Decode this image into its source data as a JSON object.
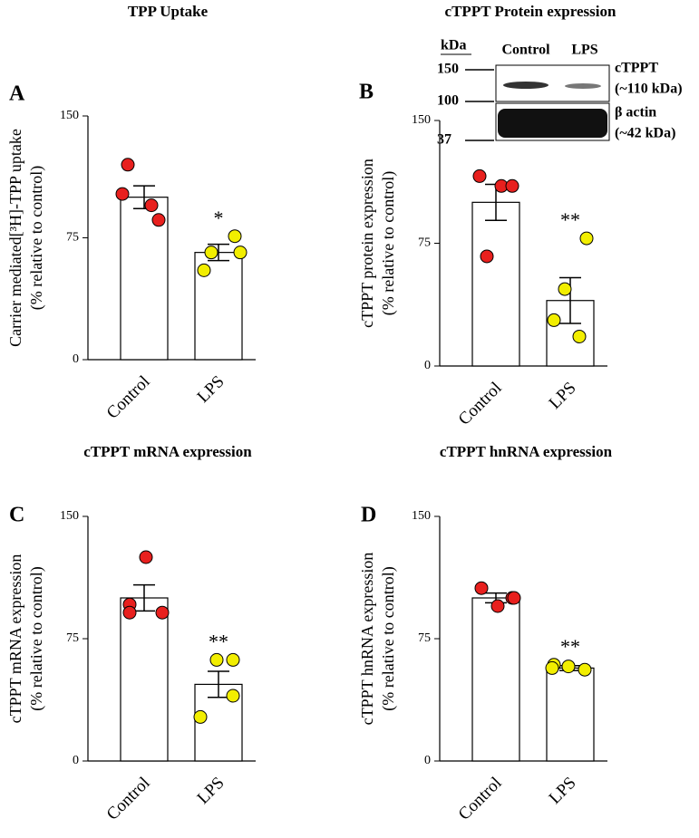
{
  "chart_data": [
    {
      "type": "bar",
      "panel": "A",
      "title": "TPP Uptake",
      "ylabel": [
        "Carrier mediated[³H]-TPP uptake",
        "(% relative to control)"
      ],
      "categories": [
        "Control",
        "LPS"
      ],
      "values": [
        100,
        66
      ],
      "errors": [
        7,
        5
      ],
      "points": [
        [
          120,
          102,
          95,
          86
        ],
        [
          76,
          66,
          66,
          55
        ]
      ],
      "colors": [
        "#e8201e",
        "#f2ee00"
      ],
      "annotations": [
        null,
        "*"
      ],
      "ylim": [
        0,
        150
      ],
      "yticks": [
        0,
        75,
        150
      ]
    },
    {
      "type": "bar",
      "panel": "B",
      "title": "cTPPT Protein expression",
      "ylabel": [
        "cTPPT protein expression",
        "(% relative to control)"
      ],
      "categories": [
        "Control",
        "LPS"
      ],
      "values": [
        100,
        40
      ],
      "errors": [
        11,
        14
      ],
      "points": [
        [
          116,
          110,
          110,
          67
        ],
        [
          78,
          47,
          28,
          18
        ]
      ],
      "colors": [
        "#e8201e",
        "#f2ee00"
      ],
      "annotations": [
        null,
        "**"
      ],
      "ylim": [
        0,
        150
      ],
      "yticks": [
        0,
        75,
        150
      ],
      "blot": {
        "unit": "kDa",
        "markers": [
          150,
          100,
          37
        ],
        "lanes": [
          "Control",
          "LPS"
        ],
        "bands": [
          [
            "cTPPT",
            "(~110 kDa)"
          ],
          [
            "β actin",
            "(~42 kDa)"
          ]
        ]
      }
    },
    {
      "type": "bar",
      "panel": "C",
      "title": "cTPPT mRNA expression",
      "ylabel": [
        "cTPPT mRNA expression",
        "(% relative to control)"
      ],
      "categories": [
        "Control",
        "LPS"
      ],
      "values": [
        100,
        47
      ],
      "errors": [
        8,
        8
      ],
      "points": [
        [
          125,
          96,
          91,
          91
        ],
        [
          62,
          62,
          40,
          27
        ]
      ],
      "colors": [
        "#e8201e",
        "#f2ee00"
      ],
      "annotations": [
        null,
        "**"
      ],
      "ylim": [
        0,
        150
      ],
      "yticks": [
        0,
        75,
        150
      ]
    },
    {
      "type": "bar",
      "panel": "D",
      "title": "cTPPT hnRNA expression",
      "ylabel": [
        "cTPPT hnRNA expression",
        "(% relative to control)"
      ],
      "categories": [
        "Control",
        "LPS"
      ],
      "values": [
        100,
        57
      ],
      "errors": [
        3,
        1.5
      ],
      "points": [
        [
          106,
          100,
          95,
          100
        ],
        [
          56,
          59,
          58,
          57
        ]
      ],
      "colors": [
        "#e8201e",
        "#f2ee00"
      ],
      "annotations": [
        null,
        "**"
      ],
      "ylim": [
        0,
        150
      ],
      "yticks": [
        0,
        75,
        150
      ]
    }
  ]
}
